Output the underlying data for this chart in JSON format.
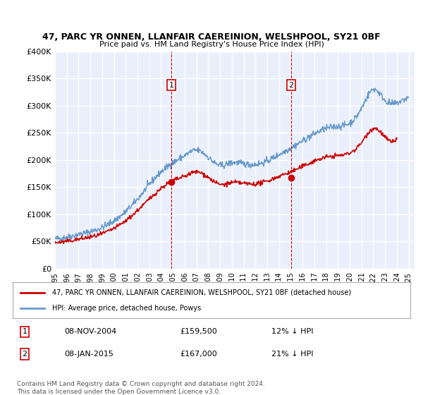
{
  "title1": "47, PARC YR ONNEN, LLANFAIR CAEREINION, WELSHPOOL, SY21 0BF",
  "title2": "Price paid vs. HM Land Registry's House Price Index (HPI)",
  "ylabel_ticks": [
    "£0",
    "£50K",
    "£100K",
    "£150K",
    "£200K",
    "£250K",
    "£300K",
    "£350K",
    "£400K"
  ],
  "ylim": [
    0,
    400000
  ],
  "xlim_start": 1995,
  "xlim_end": 2025,
  "background_color": "#eaf0fb",
  "plot_bg": "#eaf0fb",
  "grid_color": "#ffffff",
  "hpi_color": "#6699cc",
  "price_color": "#cc0000",
  "sale1_date": 2004.86,
  "sale1_price": 159500,
  "sale1_label": "1",
  "sale2_date": 2015.03,
  "sale2_price": 167000,
  "sale2_label": "2",
  "legend_line1": "47, PARC YR ONNEN, LLANFAIR CAEREINION, WELSHPOOL, SY21 0BF (detached house)",
  "legend_line2": "HPI: Average price, detached house, Powys",
  "table_row1": [
    "1",
    "08-NOV-2004",
    "£159,500",
    "12% ↓ HPI"
  ],
  "table_row2": [
    "2",
    "08-JAN-2015",
    "£167,000",
    "21% ↓ HPI"
  ],
  "footnote": "Contains HM Land Registry data © Crown copyright and database right 2024.\nThis data is licensed under the Open Government Licence v3.0.",
  "hpi_data_years": [
    1995,
    1996,
    1997,
    1998,
    1999,
    2000,
    2001,
    2002,
    2003,
    2004,
    2005,
    2006,
    2007,
    2008,
    2009,
    2010,
    2011,
    2012,
    2013,
    2014,
    2015,
    2016,
    2017,
    2018,
    2019,
    2020,
    2021,
    2022,
    2023,
    2024,
    2025
  ],
  "hpi_data_vals": [
    55000,
    58000,
    63000,
    68000,
    76000,
    88000,
    105000,
    128000,
    155000,
    178000,
    195000,
    208000,
    218000,
    205000,
    190000,
    195000,
    193000,
    192000,
    198000,
    210000,
    222000,
    235000,
    248000,
    258000,
    262000,
    268000,
    295000,
    330000,
    310000,
    305000,
    315000
  ],
  "price_data_years": [
    1995,
    1996,
    1997,
    1998,
    1999,
    2000,
    2001,
    2002,
    2003,
    2004,
    2005,
    2006,
    2007,
    2008,
    2009,
    2010,
    2011,
    2012,
    2013,
    2014,
    2015,
    2016,
    2017,
    2018,
    2019,
    2020,
    2021,
    2022,
    2023,
    2024
  ],
  "price_data_vals": [
    48000,
    50000,
    54000,
    58000,
    64000,
    74000,
    88000,
    107000,
    128000,
    148000,
    162000,
    170000,
    178000,
    168000,
    155000,
    158000,
    157000,
    156000,
    161000,
    170000,
    178000,
    188000,
    198000,
    205000,
    208000,
    213000,
    232000,
    258000,
    242000,
    240000
  ]
}
